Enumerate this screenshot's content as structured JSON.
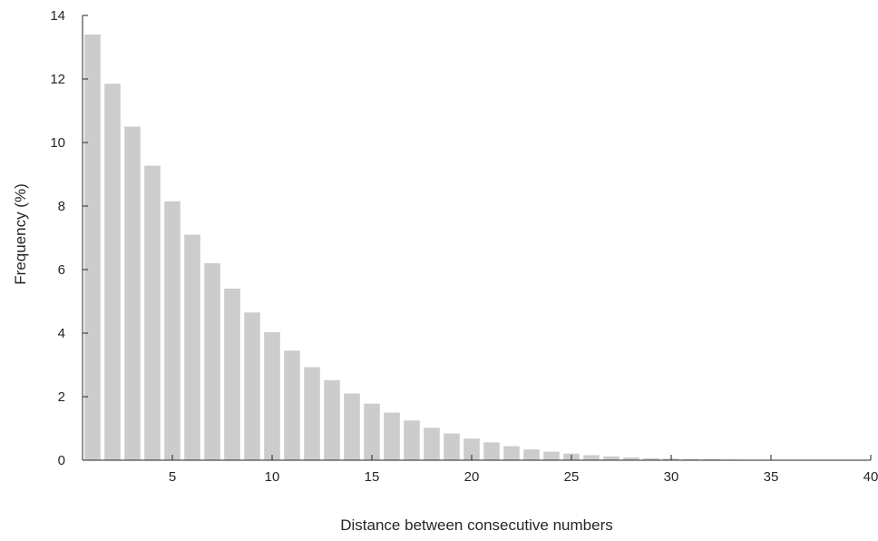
{
  "chart_data": {
    "type": "bar",
    "title": "",
    "xlabel": "Distance between consecutive numbers",
    "ylabel": "Frequency (%)",
    "xlim": [
      0.5,
      40
    ],
    "ylim": [
      0,
      14
    ],
    "xticks": [
      5,
      10,
      15,
      20,
      25,
      30,
      35,
      40
    ],
    "yticks": [
      0,
      2,
      4,
      6,
      8,
      10,
      12,
      14
    ],
    "grid": false,
    "legend": "none",
    "bar_color": "#cccccc",
    "axis_color": "#262626",
    "x": [
      1,
      2,
      3,
      4,
      5,
      6,
      7,
      8,
      9,
      10,
      11,
      12,
      13,
      14,
      15,
      16,
      17,
      18,
      19,
      20,
      21,
      22,
      23,
      24,
      25,
      26,
      27,
      28,
      29,
      30,
      31,
      32,
      33,
      34,
      35,
      36,
      37,
      38,
      39,
      40
    ],
    "values": [
      13.4,
      11.85,
      10.5,
      9.27,
      8.15,
      7.1,
      6.2,
      5.4,
      4.65,
      4.03,
      3.45,
      2.93,
      2.52,
      2.1,
      1.78,
      1.5,
      1.25,
      1.02,
      0.84,
      0.68,
      0.56,
      0.44,
      0.34,
      0.27,
      0.21,
      0.16,
      0.12,
      0.09,
      0.06,
      0.05,
      0.04,
      0.03,
      0.02,
      0.015,
      0.01,
      0.01,
      0.008,
      0.006,
      0.005,
      0.004
    ]
  }
}
